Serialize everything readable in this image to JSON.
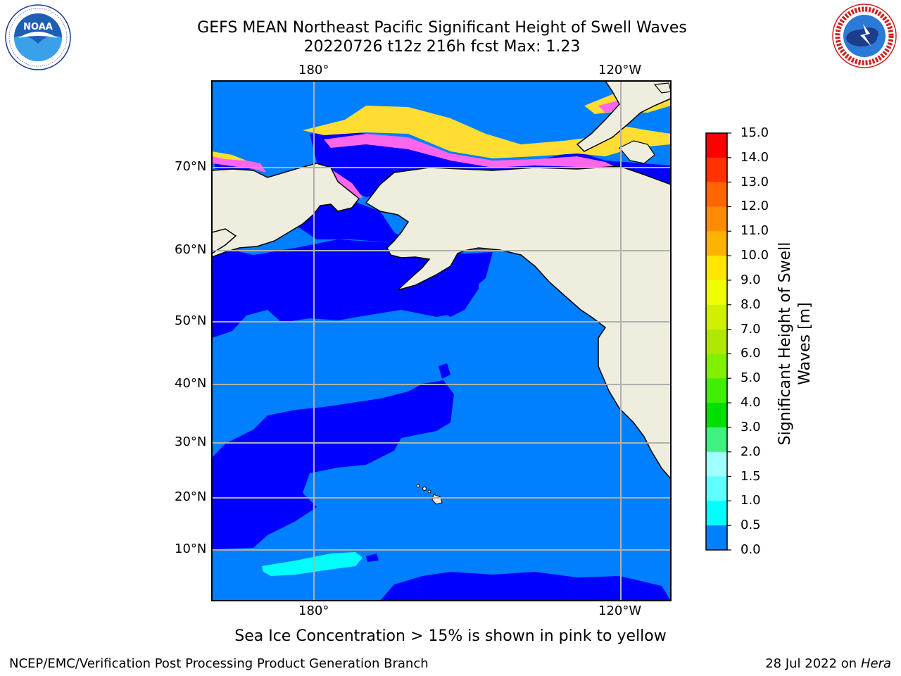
{
  "header": {
    "title_line1": "GEFS MEAN Northeast Pacific Significant Height of Swell Waves",
    "title_line2": "20220726 t12z 216h fcst   Max: 1.23"
  },
  "logos": {
    "left": {
      "text": "NOAA",
      "ring_text": "NATIONAL OCEANIC AND ATMOSPHERIC ADMINISTRATION · U.S. DEPARTMENT OF COMMERCE"
    },
    "right": {
      "ring_text": "NATIONAL WEATHER SERVICE"
    }
  },
  "map": {
    "top_ticks": [
      "180°",
      "120°W"
    ],
    "bottom_ticks": [
      "180°",
      "120°W"
    ],
    "lat_ticks": [
      "70°N",
      "60°N",
      "50°N",
      "40°N",
      "30°N",
      "20°N",
      "10°N"
    ],
    "colors": {
      "land": "#efedde",
      "ocean_low": "#0000ff",
      "ocean_mid": "#0080ff",
      "ocean_cyan": "#00ffff",
      "ice_pink": "#ff66ee",
      "ice_yellow": "#ffdd33",
      "grid": "#b0b0b0"
    }
  },
  "colorbar": {
    "title_line1": "Significant Height of Swell",
    "title_line2": "Waves [m]",
    "labels": [
      "15.0",
      "14.0",
      "13.0",
      "12.0",
      "11.0",
      "10.0",
      "9.0",
      "8.0",
      "7.0",
      "6.0",
      "5.0",
      "4.0",
      "3.0",
      "2.0",
      "1.5",
      "1.0",
      "0.5",
      "0.0"
    ],
    "colors_top_to_bottom": [
      "#ff0000",
      "#ff3300",
      "#ff6600",
      "#ff8c00",
      "#ffb300",
      "#ffe600",
      "#f0ff00",
      "#d0f000",
      "#b0e800",
      "#80f000",
      "#40ee00",
      "#00e000",
      "#40f080",
      "#a0ffff",
      "#60ffff",
      "#00ffff",
      "#0080ff",
      "#0000ff"
    ]
  },
  "footer": {
    "note": "Sea Ice Concentration > 15% is shown in pink to yellow",
    "left": "NCEP/EMC/Verification Post Processing Product Generation Branch",
    "right_prefix": "28 Jul 2022 on ",
    "right_machine": "Hera"
  }
}
